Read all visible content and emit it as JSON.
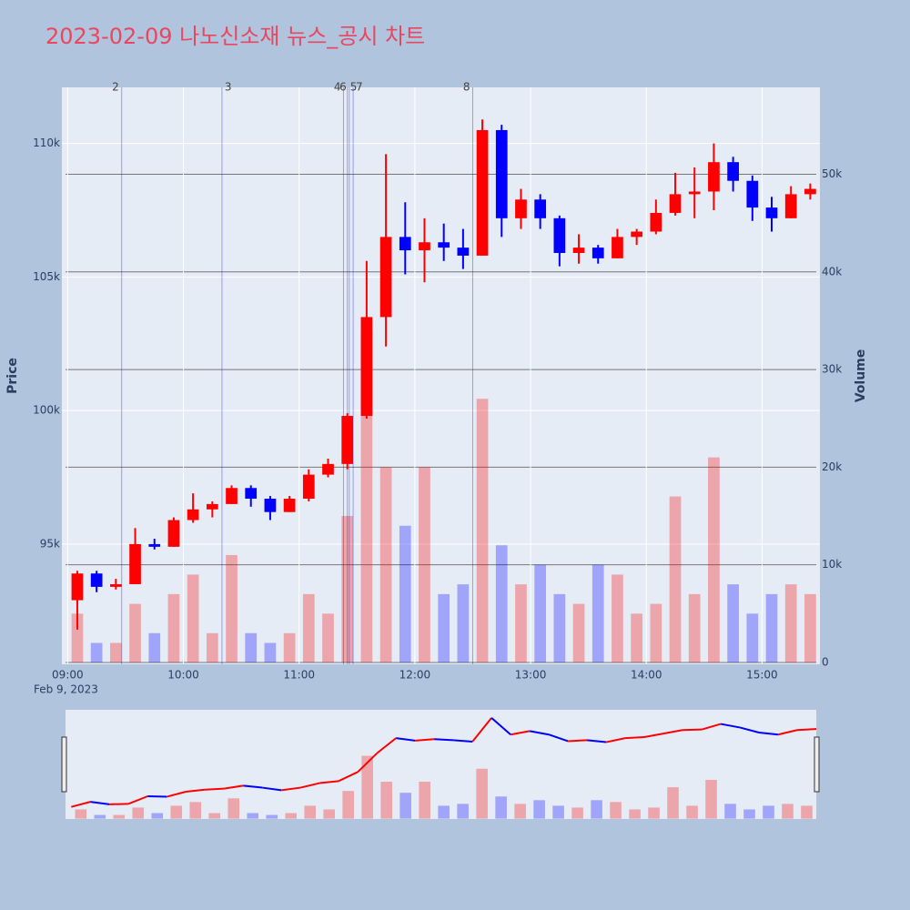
{
  "chart_data": {
    "type": "candlestick",
    "title": "2023-02-09 나노신소재 뉴스_공시 차트",
    "y_title": "Price",
    "y2_title": "Volume",
    "x_date_label": "Feb 9, 2023",
    "x": [
      "09:00",
      "09:10",
      "09:20",
      "09:30",
      "09:40",
      "09:50",
      "10:00",
      "10:10",
      "10:20",
      "10:30",
      "10:40",
      "10:50",
      "11:00",
      "11:10",
      "11:20",
      "11:30",
      "11:40",
      "11:50",
      "12:00",
      "12:10",
      "12:20",
      "12:30",
      "12:40",
      "12:50",
      "13:00",
      "13:10",
      "13:20",
      "13:30",
      "13:40",
      "13:50",
      "14:00",
      "14:10",
      "14:20",
      "14:30",
      "14:40",
      "14:50",
      "15:00",
      "15:10",
      "15:20"
    ],
    "open": [
      92900,
      93900,
      93400,
      93500,
      95000,
      94900,
      95900,
      96300,
      96500,
      97100,
      96700,
      96200,
      96700,
      97600,
      98000,
      99800,
      103500,
      106500,
      106000,
      106300,
      106100,
      105800,
      110500,
      107200,
      107900,
      107200,
      105900,
      106100,
      105700,
      106500,
      106700,
      107400,
      108100,
      108200,
      109300,
      108600,
      107600,
      107200,
      108100
    ],
    "high": [
      94000,
      94000,
      93700,
      95600,
      95200,
      96000,
      96900,
      96600,
      97200,
      97200,
      96800,
      96800,
      97800,
      98200,
      99900,
      105600,
      109600,
      107800,
      107200,
      107000,
      106800,
      110900,
      110700,
      108300,
      108100,
      107300,
      106600,
      106200,
      106800,
      106800,
      107900,
      108900,
      109100,
      110000,
      109500,
      108800,
      108000,
      108400,
      108500
    ],
    "low": [
      91800,
      93200,
      93300,
      93500,
      94800,
      94900,
      95800,
      96000,
      96500,
      96400,
      95900,
      96200,
      96600,
      97500,
      97800,
      99700,
      102400,
      105100,
      104800,
      105600,
      105300,
      105800,
      106500,
      106800,
      106800,
      105400,
      105500,
      105500,
      105700,
      106200,
      106600,
      107300,
      107200,
      107500,
      108200,
      107100,
      106700,
      107200,
      107900
    ],
    "close": [
      93900,
      93400,
      93500,
      95000,
      94900,
      95900,
      96300,
      96500,
      97100,
      96700,
      96200,
      96700,
      97600,
      98000,
      99800,
      103500,
      106500,
      106000,
      106300,
      106100,
      105800,
      110500,
      107200,
      107900,
      107200,
      105900,
      106100,
      105700,
      106500,
      106700,
      107400,
      108100,
      108200,
      109300,
      108600,
      107600,
      107200,
      108100,
      108300
    ],
    "volume": [
      5000,
      2000,
      2000,
      6000,
      3000,
      7000,
      9000,
      3000,
      11000,
      3000,
      2000,
      3000,
      7000,
      5000,
      15000,
      34000,
      20000,
      14000,
      20000,
      7000,
      8000,
      27000,
      12000,
      8000,
      10000,
      7000,
      6000,
      10000,
      9000,
      5000,
      6000,
      17000,
      7000,
      21000,
      8000,
      5000,
      7000,
      8000,
      7000
    ],
    "increasing_color": "#ff0000",
    "decreasing_color": "#0000ff",
    "news": [
      {
        "label": "2",
        "time": "09:28"
      },
      {
        "label": "3",
        "time": "10:20"
      },
      {
        "label": "4",
        "time": "11:23"
      },
      {
        "label": "5",
        "time": "11:25"
      },
      {
        "label": "6",
        "time": "11:26"
      },
      {
        "label": "7",
        "time": "11:28"
      },
      {
        "label": "8",
        "time": "12:30"
      }
    ],
    "xlim": [
      "08:57",
      "15:30"
    ],
    "xticks": [
      "09:00",
      "10:00",
      "11:00",
      "12:00",
      "13:00",
      "14:00",
      "15:00"
    ],
    "ylim": [
      90500,
      112100
    ],
    "yticks": [
      {
        "value": 95000,
        "label": "95k"
      },
      {
        "value": 100000,
        "label": "100k"
      },
      {
        "value": 105000,
        "label": "105k"
      },
      {
        "value": 110000,
        "label": "110k"
      }
    ],
    "y2lim": [
      -190,
      58900
    ],
    "y2ticks": [
      0,
      {
        "value": 10000,
        "label": "10k"
      },
      {
        "value": 20000,
        "label": "20k"
      },
      {
        "value": 30000,
        "label": "30k"
      },
      {
        "value": 40000,
        "label": "40k"
      },
      {
        "value": 50000,
        "label": "50k"
      }
    ],
    "grid": true,
    "rangeslider": true
  }
}
